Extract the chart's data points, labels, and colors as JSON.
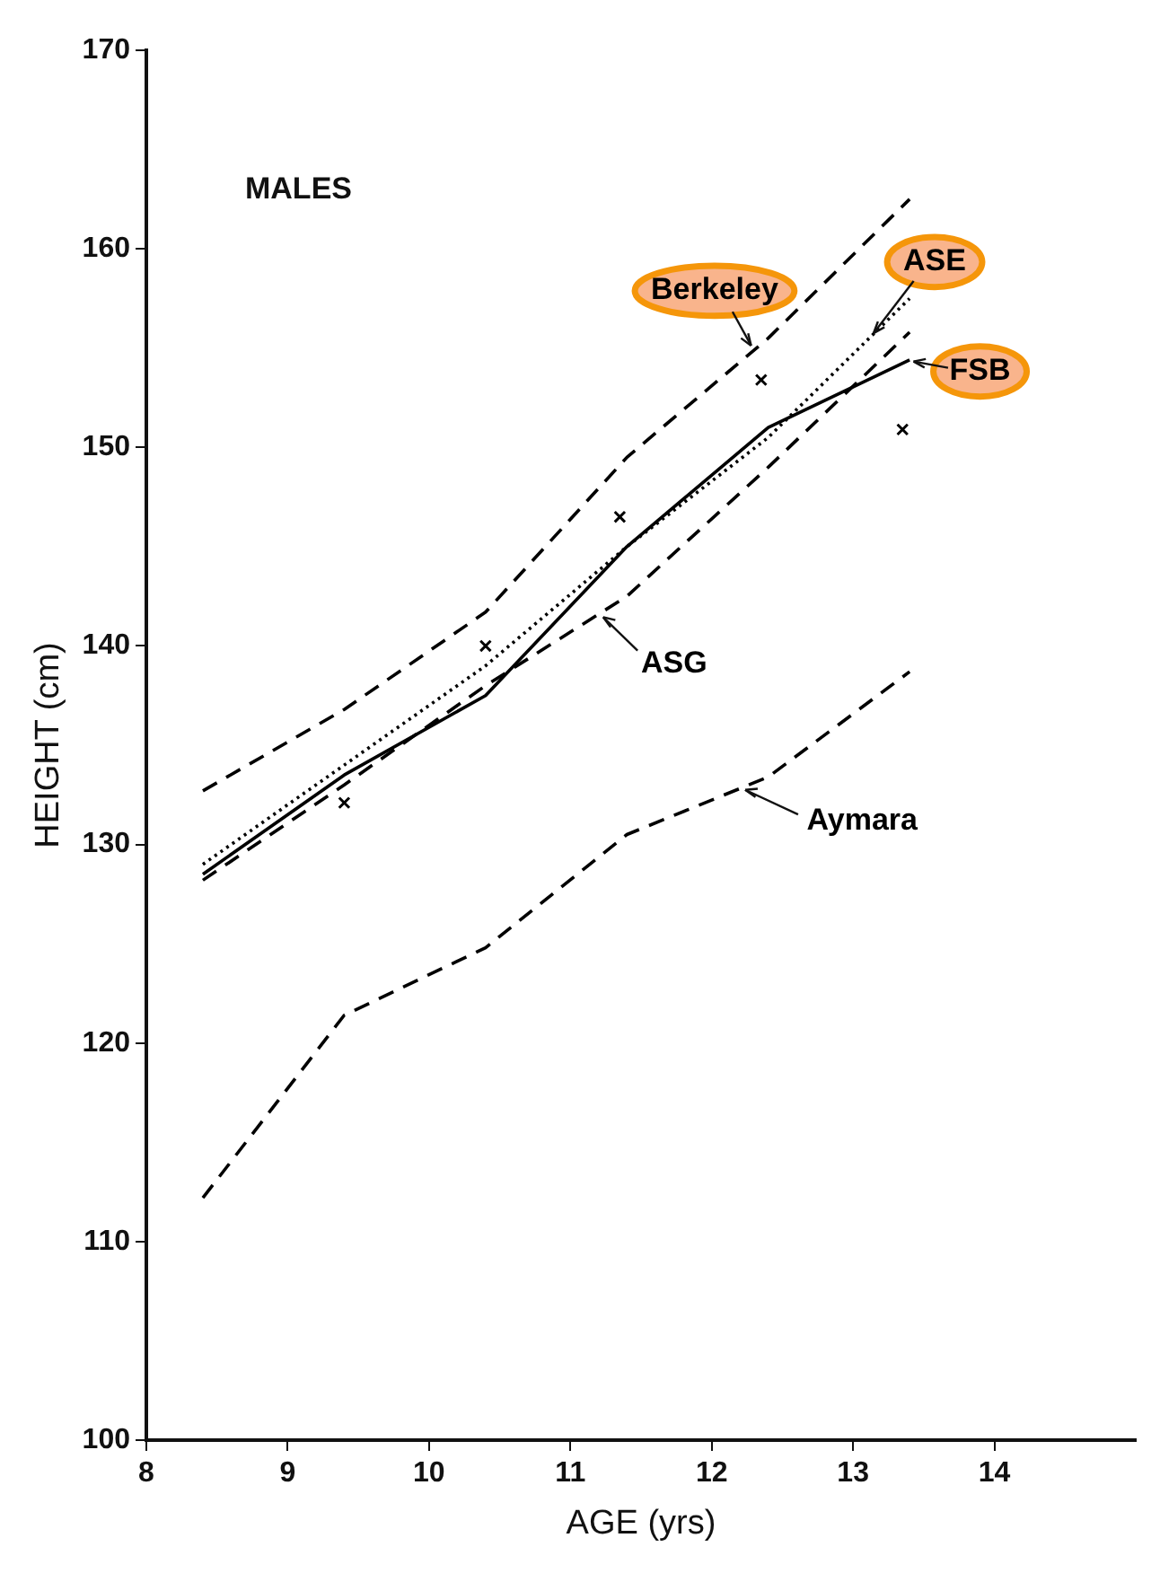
{
  "chart_data": {
    "type": "line",
    "xlabel": "AGE (yrs)",
    "ylabel": "HEIGHT (cm)",
    "annotations": [
      "MALES"
    ],
    "xlim": [
      8,
      15
    ],
    "xticks": [
      8,
      9,
      10,
      11,
      12,
      13,
      14
    ],
    "ylim": [
      100,
      170
    ],
    "yticks": [
      100,
      110,
      120,
      130,
      140,
      150,
      160,
      170
    ],
    "grid": false,
    "legend": false,
    "marker": "none",
    "x": [
      8.4,
      9.4,
      10.4,
      11.4,
      12.4,
      13.4
    ],
    "series": [
      {
        "name": "Berkeley",
        "color": "#000000",
        "line_style": "dashed",
        "values": [
          132.7,
          136.8,
          141.7,
          149.5,
          155.5,
          162.5
        ]
      },
      {
        "name": "ASE",
        "color": "#000000",
        "line_style": "dotted",
        "values": [
          129,
          134,
          139,
          145,
          150.5,
          157.5
        ]
      },
      {
        "name": "FSB",
        "color": "#000000",
        "line_style": "solid",
        "values": [
          128.5,
          133.5,
          137.5,
          145,
          151,
          154.4
        ]
      },
      {
        "name": "ASG",
        "color": "#000000",
        "line_style": "dashed",
        "values": [
          128.2,
          133,
          138,
          142.5,
          149,
          155.8
        ]
      },
      {
        "name": "Aymara",
        "color": "#000000",
        "line_style": "dashed",
        "values": [
          112.2,
          121.4,
          124.8,
          130.5,
          133.4,
          138.7
        ]
      },
      {
        "type": "scatter",
        "color": "#000000",
        "marker": "cross",
        "x": [
          9.4,
          10.4,
          11.35,
          12.35,
          13.35
        ],
        "values": [
          132.1,
          140,
          146.5,
          153.4,
          150.9
        ]
      }
    ]
  }
}
